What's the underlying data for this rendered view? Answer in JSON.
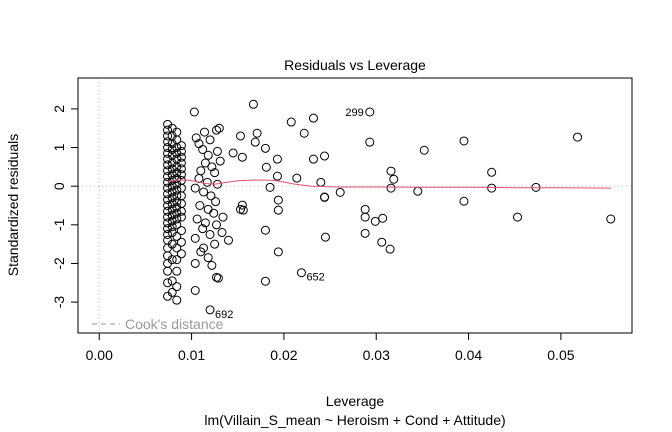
{
  "chart_data": {
    "type": "scatter",
    "title": "Residuals vs Leverage",
    "xlabel": "Leverage",
    "ylabel": "Standardized residuals",
    "subtitle": "lm(Villain_S_mean ~ Heroism + Cond + Attitude)",
    "xlim": [
      -0.0023,
      0.0577
    ],
    "ylim": [
      -3.8,
      2.8
    ],
    "x_ticks": [
      0.0,
      0.01,
      0.02,
      0.03,
      0.04,
      0.05
    ],
    "x_tick_labels": [
      "0.00",
      "0.01",
      "0.02",
      "0.03",
      "0.04",
      "0.05"
    ],
    "y_ticks": [
      -3,
      -2,
      -1,
      0,
      1,
      2
    ],
    "y_tick_labels": [
      "-3",
      "-2",
      "-1",
      "0",
      "1",
      "2"
    ],
    "grid": false,
    "legend": {
      "placement": "bottom-left",
      "entries": [
        {
          "label": "Cook's distance",
          "style": "dashed",
          "color": "#999999"
        }
      ]
    },
    "colors": {
      "points": "#000000",
      "smoother": "#DF536B",
      "reference": "#BBBBBB",
      "legend": "#999999"
    },
    "labeled_points": [
      {
        "label": "299",
        "x": 0.0293,
        "y": 1.92
      },
      {
        "label": "652",
        "x": 0.0219,
        "y": -2.24
      },
      {
        "label": "692",
        "x": 0.012,
        "y": -3.2
      }
    ],
    "smoother": [
      [
        0.0074,
        0.12
      ],
      [
        0.0085,
        0.15
      ],
      [
        0.0095,
        0.16
      ],
      [
        0.0105,
        0.12
      ],
      [
        0.0115,
        0.07
      ],
      [
        0.0125,
        0.05
      ],
      [
        0.0135,
        0.09
      ],
      [
        0.015,
        0.14
      ],
      [
        0.017,
        0.16
      ],
      [
        0.019,
        0.15
      ],
      [
        0.021,
        0.06
      ],
      [
        0.023,
        0.0
      ],
      [
        0.026,
        -0.02
      ],
      [
        0.03,
        -0.02
      ],
      [
        0.035,
        -0.03
      ],
      [
        0.04,
        -0.03
      ],
      [
        0.045,
        -0.04
      ],
      [
        0.05,
        -0.04
      ],
      [
        0.0554,
        -0.05
      ]
    ],
    "points": [
      [
        0.0074,
        1.6
      ],
      [
        0.0074,
        1.45
      ],
      [
        0.0074,
        1.3
      ],
      [
        0.0074,
        1.15
      ],
      [
        0.0074,
        1.0
      ],
      [
        0.0074,
        0.85
      ],
      [
        0.0074,
        0.7
      ],
      [
        0.0074,
        0.55
      ],
      [
        0.0074,
        0.4
      ],
      [
        0.0074,
        0.25
      ],
      [
        0.0074,
        0.1
      ],
      [
        0.0074,
        -0.05
      ],
      [
        0.0074,
        -0.2
      ],
      [
        0.0074,
        -0.35
      ],
      [
        0.0074,
        -0.5
      ],
      [
        0.0074,
        -0.65
      ],
      [
        0.0074,
        -0.8
      ],
      [
        0.0074,
        -0.95
      ],
      [
        0.0074,
        -1.1
      ],
      [
        0.0074,
        -1.25
      ],
      [
        0.0074,
        -1.4
      ],
      [
        0.0074,
        -1.6
      ],
      [
        0.0074,
        -1.8
      ],
      [
        0.0074,
        -2.0
      ],
      [
        0.0074,
        -2.2
      ],
      [
        0.0074,
        -2.5
      ],
      [
        0.0074,
        -2.85
      ],
      [
        0.0079,
        1.5
      ],
      [
        0.0079,
        1.3
      ],
      [
        0.0079,
        1.1
      ],
      [
        0.0079,
        0.95
      ],
      [
        0.0079,
        0.8
      ],
      [
        0.0079,
        0.6
      ],
      [
        0.0079,
        0.45
      ],
      [
        0.0079,
        0.3
      ],
      [
        0.0079,
        0.15
      ],
      [
        0.0079,
        0.0
      ],
      [
        0.0079,
        -0.15
      ],
      [
        0.0079,
        -0.3
      ],
      [
        0.0079,
        -0.45
      ],
      [
        0.0079,
        -0.6
      ],
      [
        0.0079,
        -0.75
      ],
      [
        0.0079,
        -0.9
      ],
      [
        0.0079,
        -1.05
      ],
      [
        0.0079,
        -1.2
      ],
      [
        0.0079,
        -1.5
      ],
      [
        0.0079,
        -1.9
      ],
      [
        0.0079,
        -2.45
      ],
      [
        0.0079,
        -2.75
      ],
      [
        0.0084,
        1.4
      ],
      [
        0.0084,
        1.2
      ],
      [
        0.0084,
        1.0
      ],
      [
        0.0084,
        0.85
      ],
      [
        0.0084,
        0.7
      ],
      [
        0.0084,
        0.5
      ],
      [
        0.0084,
        0.35
      ],
      [
        0.0084,
        0.2
      ],
      [
        0.0084,
        0.05
      ],
      [
        0.0084,
        -0.1
      ],
      [
        0.0084,
        -0.25
      ],
      [
        0.0084,
        -0.4
      ],
      [
        0.0084,
        -0.55
      ],
      [
        0.0084,
        -0.7
      ],
      [
        0.0084,
        -0.85
      ],
      [
        0.0084,
        -1.0
      ],
      [
        0.0084,
        -1.3
      ],
      [
        0.0084,
        -1.6
      ],
      [
        0.0084,
        -1.9
      ],
      [
        0.0084,
        -2.2
      ],
      [
        0.0084,
        -2.6
      ],
      [
        0.0084,
        -2.95
      ],
      [
        0.0089,
        1.05
      ],
      [
        0.0089,
        0.9
      ],
      [
        0.0089,
        0.75
      ],
      [
        0.0089,
        0.6
      ],
      [
        0.0089,
        0.45
      ],
      [
        0.0089,
        0.3
      ],
      [
        0.0089,
        0.15
      ],
      [
        0.0089,
        -0.05
      ],
      [
        0.0089,
        -0.25
      ],
      [
        0.0089,
        -0.45
      ],
      [
        0.0089,
        -0.65
      ],
      [
        0.0089,
        -0.8
      ],
      [
        0.0089,
        -1.15
      ],
      [
        0.0089,
        -1.45
      ],
      [
        0.0089,
        -1.75
      ],
      [
        0.0103,
        1.92
      ],
      [
        0.0105,
        1.25
      ],
      [
        0.0108,
        1.1
      ],
      [
        0.0112,
        0.95
      ],
      [
        0.0118,
        0.8
      ],
      [
        0.0115,
        0.6
      ],
      [
        0.0122,
        0.5
      ],
      [
        0.011,
        0.4
      ],
      [
        0.0125,
        0.35
      ],
      [
        0.0108,
        0.2
      ],
      [
        0.0117,
        0.1
      ],
      [
        0.0128,
        0.05
      ],
      [
        0.0104,
        -0.05
      ],
      [
        0.0113,
        -0.15
      ],
      [
        0.0121,
        -0.25
      ],
      [
        0.0126,
        -0.4
      ],
      [
        0.0109,
        -0.5
      ],
      [
        0.0118,
        -0.6
      ],
      [
        0.0124,
        -0.7
      ],
      [
        0.0106,
        -0.85
      ],
      [
        0.0115,
        -0.95
      ],
      [
        0.0127,
        -1.0
      ],
      [
        0.0112,
        -1.1
      ],
      [
        0.012,
        -1.25
      ],
      [
        0.0104,
        -1.35
      ],
      [
        0.0125,
        -1.5
      ],
      [
        0.011,
        -1.7
      ],
      [
        0.0118,
        -1.85
      ],
      [
        0.0104,
        -2.0
      ],
      [
        0.0122,
        -2.05
      ],
      [
        0.0113,
        -1.6
      ],
      [
        0.0127,
        1.45
      ],
      [
        0.013,
        1.5
      ],
      [
        0.0114,
        1.4
      ],
      [
        0.012,
        1.2
      ],
      [
        0.0128,
        0.9
      ],
      [
        0.0131,
        0.65
      ],
      [
        0.0134,
        -0.8
      ],
      [
        0.0133,
        -1.2
      ],
      [
        0.014,
        -1.4
      ],
      [
        0.0104,
        -2.7
      ],
      [
        0.0127,
        -2.36
      ],
      [
        0.0129,
        -2.38
      ],
      [
        0.012,
        -3.2
      ],
      [
        0.0167,
        2.12
      ],
      [
        0.0153,
        1.3
      ],
      [
        0.0171,
        1.37
      ],
      [
        0.0169,
        1.14
      ],
      [
        0.018,
        0.98
      ],
      [
        0.0193,
        0.7
      ],
      [
        0.0181,
        0.49
      ],
      [
        0.0193,
        0.26
      ],
      [
        0.0185,
        -0.03
      ],
      [
        0.0194,
        -0.36
      ],
      [
        0.0194,
        -0.62
      ],
      [
        0.018,
        -1.14
      ],
      [
        0.0194,
        -1.7
      ],
      [
        0.018,
        -2.46
      ],
      [
        0.0155,
        0.75
      ],
      [
        0.0145,
        0.86
      ],
      [
        0.0155,
        -0.49
      ],
      [
        0.0156,
        -0.62
      ],
      [
        0.0153,
        -0.6
      ],
      [
        0.0208,
        1.66
      ],
      [
        0.0232,
        1.76
      ],
      [
        0.0222,
        1.37
      ],
      [
        0.0293,
        1.92
      ],
      [
        0.0293,
        1.14
      ],
      [
        0.0232,
        0.7
      ],
      [
        0.0244,
        0.78
      ],
      [
        0.0214,
        0.21
      ],
      [
        0.024,
        0.1
      ],
      [
        0.0244,
        -0.28
      ],
      [
        0.0244,
        -0.29
      ],
      [
        0.0261,
        -0.16
      ],
      [
        0.0245,
        -1.32
      ],
      [
        0.0288,
        -0.6
      ],
      [
        0.0288,
        -0.8
      ],
      [
        0.0299,
        -0.91
      ],
      [
        0.0307,
        -0.83
      ],
      [
        0.0288,
        -1.22
      ],
      [
        0.0306,
        -1.45
      ],
      [
        0.0315,
        -1.63
      ],
      [
        0.0316,
        0.39
      ],
      [
        0.0319,
        0.18
      ],
      [
        0.0316,
        -0.05
      ],
      [
        0.0352,
        0.93
      ],
      [
        0.0345,
        -0.13
      ],
      [
        0.0395,
        1.17
      ],
      [
        0.0395,
        -0.39
      ],
      [
        0.0425,
        0.36
      ],
      [
        0.0425,
        -0.05
      ],
      [
        0.0473,
        -0.03
      ],
      [
        0.0453,
        -0.8
      ],
      [
        0.0518,
        1.27
      ],
      [
        0.0554,
        -0.85
      ],
      [
        0.0219,
        -2.24
      ]
    ]
  }
}
